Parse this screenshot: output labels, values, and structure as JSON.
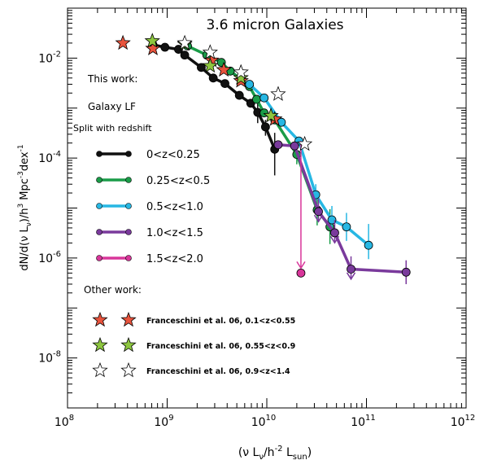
{
  "chart_data": {
    "type": "scatter",
    "title": "3.6 micron Galaxies",
    "xlabel": "(ν L",
    "xlabel_sub1": "ν",
    "xlabel_mid": "/h",
    "xlabel_sup": "-2",
    "xlabel_end": " L",
    "xlabel_sub2": "sun",
    "xlabel_close": ")",
    "ylabel": "dN/d(ν L",
    "ylabel_sub": "ν",
    "ylabel_mid": ")/h",
    "ylabel_sup1": "3",
    "ylabel_mid2": " Mpc",
    "ylabel_sup2": "-3",
    "ylabel_end": "dex",
    "ylabel_sup3": "-1",
    "x_scale": "log",
    "y_scale": "log",
    "xlim": [
      100000000.0,
      1000000000000.0
    ],
    "ylim": [
      1e-09,
      0.1
    ],
    "x_ticks": [
      {
        "value": 100000000.0,
        "base": "10",
        "exp": "8"
      },
      {
        "value": 1000000000.0,
        "base": "10",
        "exp": "9"
      },
      {
        "value": 10000000000.0,
        "base": "10",
        "exp": "10"
      },
      {
        "value": 100000000000.0,
        "base": "10",
        "exp": "11"
      },
      {
        "value": 1000000000000.0,
        "base": "10",
        "exp": "12"
      }
    ],
    "y_ticks": [
      {
        "value": 0.01,
        "base": "10",
        "exp": "-2"
      },
      {
        "value": 0.0001,
        "base": "10",
        "exp": "-4"
      },
      {
        "value": 1e-06,
        "base": "10",
        "exp": "-6"
      },
      {
        "value": 1e-08,
        "base": "10",
        "exp": "-8"
      }
    ],
    "legend": {
      "heading1": "This work:",
      "heading2": "Galaxy LF",
      "heading3": "Split with redshift",
      "heading4": "Other work:"
    },
    "series": [
      {
        "name": "0<z<0.25",
        "color": "#111111",
        "points": [
          [
            720000000.0,
            0.0185,
            null,
            null
          ],
          [
            950000000.0,
            0.0165,
            null,
            null
          ],
          [
            1300000000.0,
            0.015,
            null,
            null
          ],
          [
            1500000000.0,
            0.0115,
            null,
            null
          ],
          [
            2200000000.0,
            0.0065,
            null,
            null
          ],
          [
            2900000000.0,
            0.004,
            null,
            null
          ],
          [
            3800000000.0,
            0.0031,
            null,
            null
          ],
          [
            5300000000.0,
            0.0018,
            null,
            null
          ],
          [
            6900000000.0,
            0.00125,
            null,
            null
          ],
          [
            8100000000.0,
            0.00082,
            0.0005,
            0.0013
          ],
          [
            9700000000.0,
            0.00042,
            0.00028,
            0.00058
          ],
          [
            12000000000.0,
            0.00015,
            4.5e-05,
            0.00032
          ]
        ]
      },
      {
        "name": "0.25<z<0.5",
        "color": "#1a9c48",
        "points": [
          [
            1600000000.0,
            0.0175,
            null,
            null
          ],
          [
            2500000000.0,
            0.0115,
            null,
            null
          ],
          [
            3500000000.0,
            0.0082,
            null,
            null
          ],
          [
            4300000000.0,
            0.0055,
            null,
            null
          ],
          [
            5500000000.0,
            0.0038,
            null,
            null
          ],
          [
            6700000000.0,
            0.0027,
            null,
            null
          ],
          [
            7900000000.0,
            0.0015,
            null,
            null
          ],
          [
            9400000000.0,
            0.0008,
            null,
            null
          ],
          [
            12000000000.0,
            0.00058,
            null,
            null
          ],
          [
            20000000000.0,
            0.000118,
            7.5e-05,
            0.00021
          ],
          [
            32000000000.0,
            9.2e-06,
            4.5e-06,
            1.7e-05
          ],
          [
            43000000000.0,
            4.2e-06,
            1.9e-06,
            9.5e-06
          ]
        ]
      },
      {
        "name": "0.5<z<1.0",
        "color": "#27b7e3",
        "points": [
          [
            6700000000.0,
            0.003,
            null,
            null
          ],
          [
            9400000000.0,
            0.0016,
            null,
            null
          ],
          [
            14000000000.0,
            0.00052,
            null,
            null
          ],
          [
            21000000000.0,
            0.00022,
            null,
            null
          ],
          [
            31000000000.0,
            1.85e-05,
            1.1e-05,
            3e-05
          ],
          [
            45000000000.0,
            5.8e-06,
            3.5e-06,
            1.1e-05
          ],
          [
            63000000000.0,
            4.2e-06,
            2.2e-06,
            8e-06
          ],
          [
            105000000000.0,
            1.8e-06,
            9.5e-07,
            4.8e-06
          ]
        ]
      },
      {
        "name": "1.0<z<1.5",
        "color": "#7a3a9c",
        "points": [
          [
            13000000000.0,
            0.000185,
            null,
            null
          ],
          [
            19000000000.0,
            0.000175,
            null,
            null
          ],
          [
            33000000000.0,
            8.5e-06,
            null,
            null,
            "ul"
          ],
          [
            48000000000.0,
            3.2e-06,
            null,
            null,
            "ul"
          ],
          [
            70000000000.0,
            6e-07,
            null,
            null,
            "ul"
          ],
          [
            250000000000.0,
            5.2e-07,
            3e-07,
            9e-07
          ]
        ]
      },
      {
        "name": "1.5<z<2.0",
        "color": "#d8369a",
        "points": [
          [
            22000000000.0,
            5e-07,
            null,
            null,
            "ul_long"
          ]
        ]
      }
    ],
    "stars": [
      {
        "name": "Franceschini et al. 06, 0.1<z<0.55",
        "color": "#e8533c",
        "points": [
          [
            360000000.0,
            0.02
          ],
          [
            720000000.0,
            0.0155
          ],
          [
            2800000000.0,
            0.009
          ],
          [
            3700000000.0,
            0.0058
          ],
          [
            5500000000.0,
            0.0035
          ],
          [
            12000000000.0,
            0.0006
          ]
        ]
      },
      {
        "name": "Franceschini et al. 06, 0.55<z<0.9",
        "color": "#8dc63f",
        "points": [
          [
            710000000.0,
            0.022
          ],
          [
            1500000000.0,
            0.019
          ],
          [
            2700000000.0,
            0.007
          ],
          [
            5500000000.0,
            0.004
          ],
          [
            11000000000.0,
            0.0007
          ]
        ]
      },
      {
        "name": "Franceschini et al. 06, 0.9<z<1.4",
        "color": "#ffffff",
        "points": [
          [
            1500000000.0,
            0.02
          ],
          [
            2700000000.0,
            0.013
          ],
          [
            5500000000.0,
            0.0052
          ],
          [
            13000000000.0,
            0.0019
          ],
          [
            24000000000.0,
            0.00019
          ]
        ]
      }
    ]
  }
}
